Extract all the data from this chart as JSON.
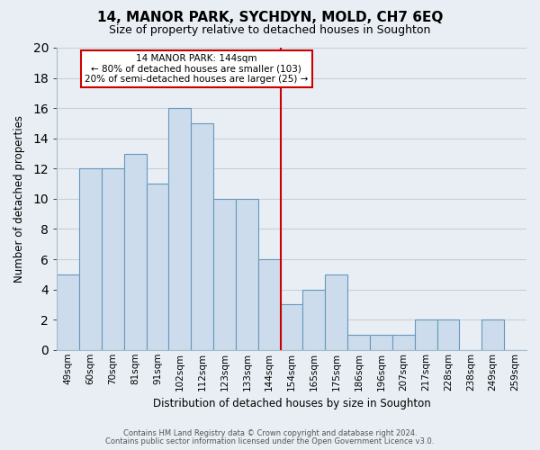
{
  "title": "14, MANOR PARK, SYCHDYN, MOLD, CH7 6EQ",
  "subtitle": "Size of property relative to detached houses in Soughton",
  "xlabel": "Distribution of detached houses by size in Soughton",
  "ylabel": "Number of detached properties",
  "bar_labels": [
    "49sqm",
    "60sqm",
    "70sqm",
    "81sqm",
    "91sqm",
    "102sqm",
    "112sqm",
    "123sqm",
    "133sqm",
    "144sqm",
    "154sqm",
    "165sqm",
    "175sqm",
    "186sqm",
    "196sqm",
    "207sqm",
    "217sqm",
    "228sqm",
    "238sqm",
    "249sqm",
    "259sqm"
  ],
  "bar_values": [
    5,
    12,
    12,
    13,
    11,
    16,
    15,
    10,
    10,
    6,
    3,
    4,
    5,
    1,
    1,
    1,
    2,
    2,
    0,
    2,
    0
  ],
  "bar_color": "#ccdcec",
  "bar_edgecolor": "#6699bb",
  "vline_index": 9,
  "vline_color": "#cc0000",
  "ylim": [
    0,
    20
  ],
  "yticks": [
    0,
    2,
    4,
    6,
    8,
    10,
    12,
    14,
    16,
    18,
    20
  ],
  "annotation_title": "14 MANOR PARK: 144sqm",
  "annotation_line1": "← 80% of detached houses are smaller (103)",
  "annotation_line2": "20% of semi-detached houses are larger (25) →",
  "annotation_box_edgecolor": "#cc0000",
  "footer_line1": "Contains HM Land Registry data © Crown copyright and database right 2024.",
  "footer_line2": "Contains public sector information licensed under the Open Government Licence v3.0.",
  "bg_color": "#e8eef4",
  "plot_bg_color": "#e8eef4",
  "grid_color": "#c8d0d8",
  "title_fontsize": 11,
  "subtitle_fontsize": 9
}
